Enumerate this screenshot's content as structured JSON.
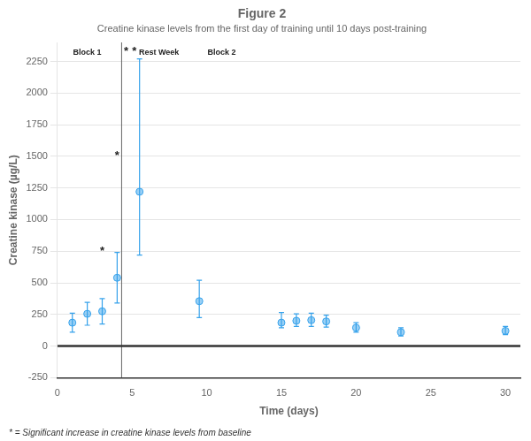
{
  "chart_data": {
    "type": "scatter",
    "title": "Figure 2",
    "subtitle": "Creatine kinase levels from the first day of training until 10 days post-training",
    "xlabel": "Time (days)",
    "ylabel": "Creatine kinase (µg/L)",
    "x": [
      1,
      2,
      3,
      4,
      5.5,
      9.5,
      15,
      16,
      17,
      18,
      20,
      23,
      30
    ],
    "values": [
      185,
      255,
      275,
      540,
      1220,
      355,
      185,
      200,
      205,
      195,
      145,
      110,
      120
    ],
    "error_low": [
      75,
      90,
      100,
      200,
      500,
      130,
      40,
      45,
      50,
      45,
      35,
      30,
      30
    ],
    "error_high": [
      75,
      90,
      100,
      200,
      1050,
      165,
      80,
      55,
      55,
      50,
      40,
      35,
      35
    ],
    "xlim": [
      0,
      31
    ],
    "xticks": [
      0,
      5,
      10,
      15,
      20,
      25,
      30
    ],
    "ylim": [
      -250,
      2400
    ],
    "yticks": [
      -250,
      0,
      250,
      500,
      750,
      1000,
      1250,
      1500,
      1750,
      2000,
      2250
    ],
    "grid": true,
    "lines": [
      {
        "x": 4.3
      },
      {
        "y": 0
      }
    ],
    "annotations": [
      {
        "text": "*",
        "x": 3,
        "y": 750
      },
      {
        "text": "*",
        "x": 4,
        "y": 1500
      },
      {
        "text": "*",
        "x": 4.6,
        "y": 2330
      },
      {
        "text": "*",
        "x": 5.15,
        "y": 2330
      },
      {
        "text": "Block 1",
        "x": 2.0,
        "y": 2320
      },
      {
        "text": "Rest Week",
        "x": 6.8,
        "y": 2320
      },
      {
        "text": "Block 2",
        "x": 11.0,
        "y": 2320
      }
    ],
    "footnote": "* = Significant increase in creatine kinase levels from baseline"
  }
}
